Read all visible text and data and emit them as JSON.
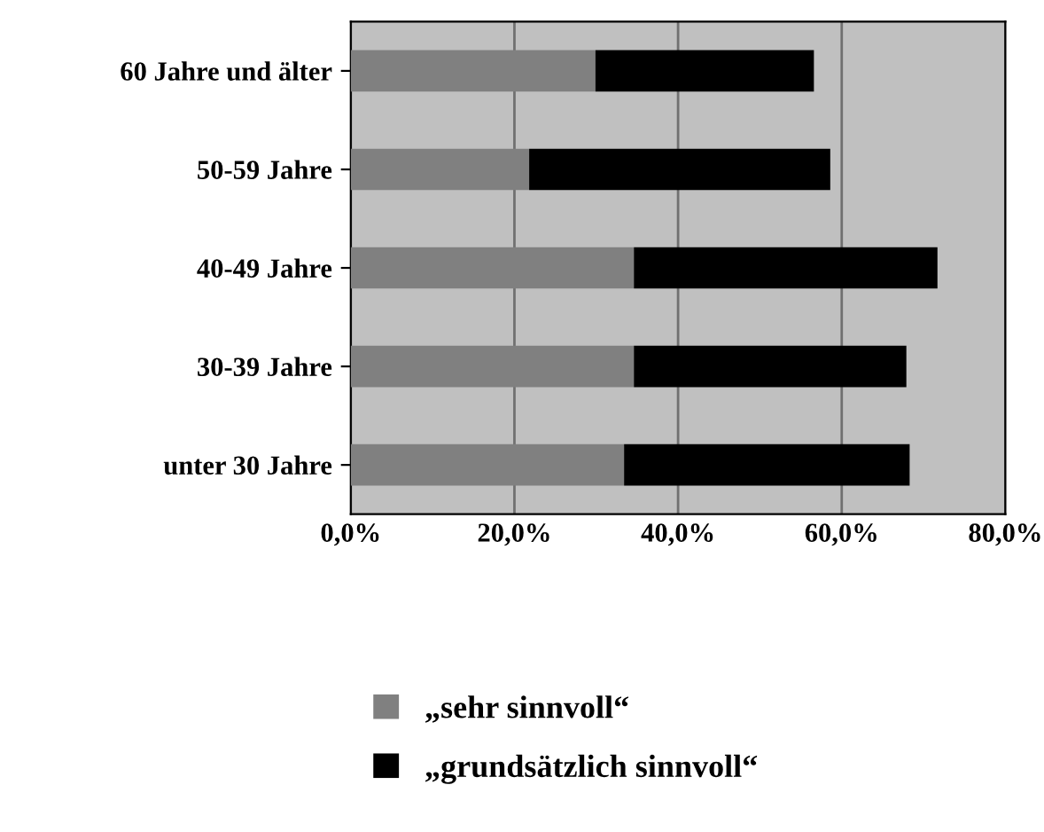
{
  "chart_data": {
    "type": "bar",
    "orientation": "horizontal",
    "stacked": true,
    "categories": [
      "60 Jahre und älter",
      "50-59 Jahre",
      "40-49 Jahre",
      "30-39 Jahre",
      "unter 30 Jahre"
    ],
    "series": [
      {
        "name": "„sehr sinnvoll“",
        "color": "#808080",
        "values": [
          29.9,
          21.8,
          34.6,
          34.6,
          33.4
        ]
      },
      {
        "name": "„grundsätzlich sinnvoll“",
        "color": "#000000",
        "values": [
          26.7,
          36.8,
          37.1,
          33.3,
          34.9
        ]
      }
    ],
    "xlim": [
      0,
      80
    ],
    "xticks": [
      {
        "value": 0,
        "label": "0,0%"
      },
      {
        "value": 20,
        "label": "20,0%"
      },
      {
        "value": 40,
        "label": "40,0%"
      },
      {
        "value": 60,
        "label": "60,0%"
      },
      {
        "value": 80,
        "label": "80,0%"
      }
    ],
    "grid": "x",
    "legend": "bottom"
  }
}
